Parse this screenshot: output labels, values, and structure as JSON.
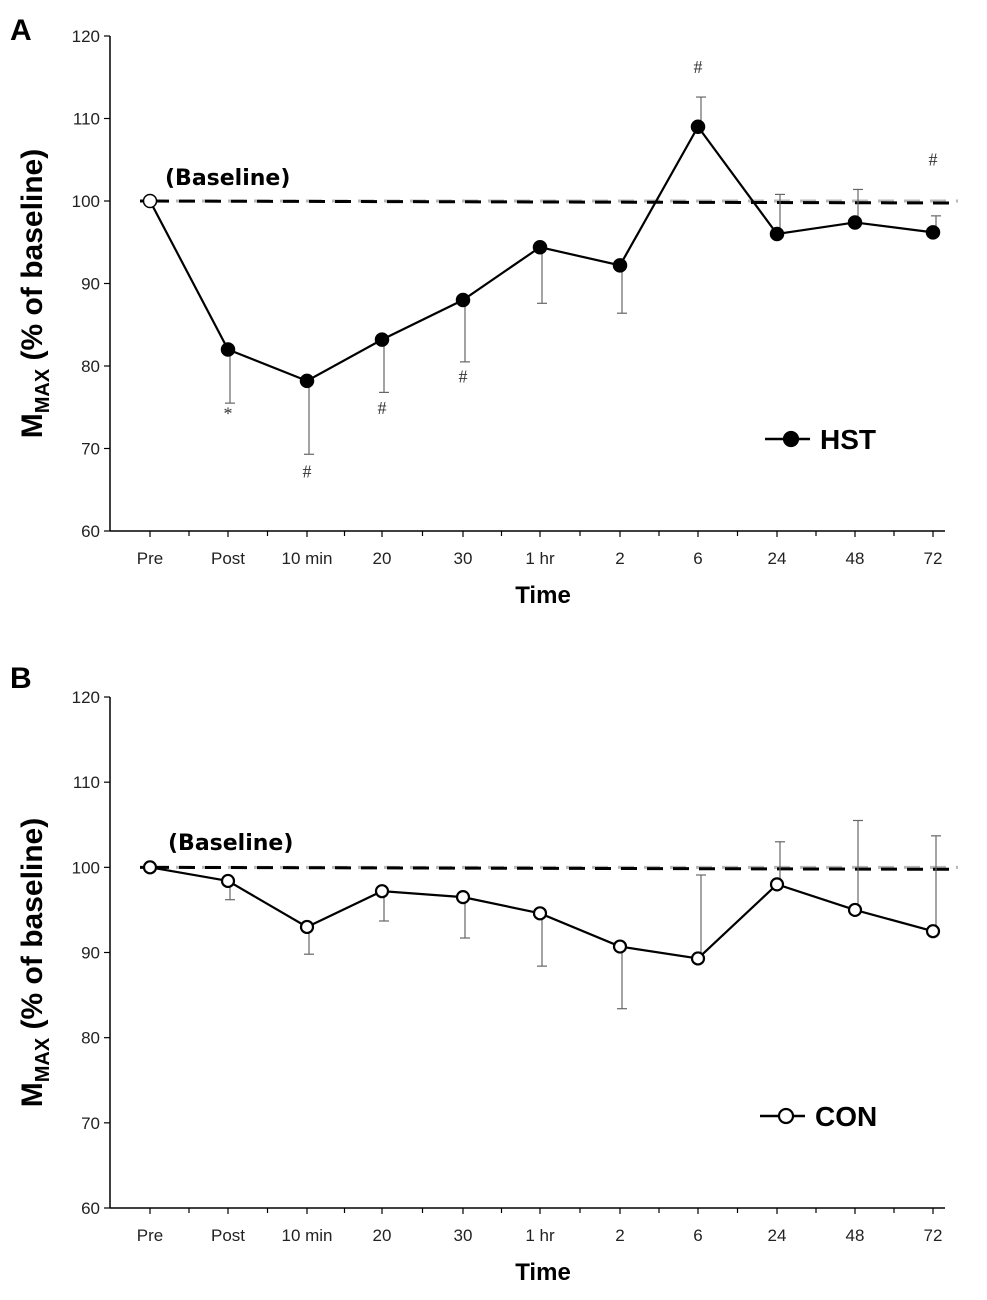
{
  "chart_data": [
    {
      "panel": "A",
      "type": "line",
      "categories": [
        "Pre",
        "Post",
        "10 min",
        "20",
        "30",
        "1 hr",
        "2",
        "6",
        "24",
        "48",
        "72"
      ],
      "series": [
        {
          "name": "HST",
          "marker": "filled",
          "values": [
            100,
            82,
            78.2,
            83.2,
            88,
            94.4,
            92.2,
            109,
            96,
            97.4,
            96.2
          ],
          "error_upper": [
            0,
            0,
            0,
            0,
            0,
            0,
            0,
            112.6,
            100.8,
            101.4,
            98.2
          ],
          "error_lower": [
            100,
            75.5,
            69.3,
            76.8,
            80.5,
            87.6,
            86.4,
            109,
            96,
            97.4,
            96.2
          ]
        }
      ],
      "ylim": [
        60,
        120
      ],
      "yticks": [
        60,
        70,
        80,
        90,
        100,
        110,
        120
      ],
      "xlabel": "Time",
      "ylabel": "M",
      "ylabel_sub": "MAX",
      "ylabel_rest": " (% of baseline)",
      "baseline_value": 100,
      "baseline_label": "(Baseline)",
      "legend_label": "HST",
      "annotations": [
        {
          "text": "*",
          "category": "Post",
          "value": 73.5
        },
        {
          "text": "#",
          "category": "10 min",
          "value": 66.5
        },
        {
          "text": "#",
          "category": "20",
          "value": 74.2
        },
        {
          "text": "#",
          "category": "30",
          "value": 78.0
        },
        {
          "text": "#",
          "category": "6",
          "value": 115.5
        },
        {
          "text": "#",
          "category": "72",
          "value": 104.3
        }
      ]
    },
    {
      "panel": "B",
      "type": "line",
      "categories": [
        "Pre",
        "Post",
        "10 min",
        "20",
        "30",
        "1 hr",
        "2",
        "6",
        "24",
        "48",
        "72"
      ],
      "series": [
        {
          "name": "CON",
          "marker": "open",
          "values": [
            100,
            98.4,
            93,
            97.2,
            96.5,
            94.6,
            90.7,
            89.3,
            98,
            95,
            92.5
          ],
          "error_upper": [
            0,
            0,
            0,
            0,
            0,
            0,
            0,
            99.1,
            103,
            105.5,
            103.7
          ],
          "error_lower": [
            100,
            96.2,
            89.8,
            93.7,
            91.7,
            88.4,
            83.4,
            89.3,
            98,
            95,
            92.5
          ]
        }
      ],
      "ylim": [
        60,
        120
      ],
      "yticks": [
        60,
        70,
        80,
        90,
        100,
        110,
        120
      ],
      "xlabel": "Time",
      "ylabel": "M",
      "ylabel_sub": "MAX",
      "ylabel_rest": " (% of baseline)",
      "baseline_value": 100,
      "baseline_label": "(Baseline)",
      "legend_label": "CON",
      "annotations": []
    }
  ]
}
